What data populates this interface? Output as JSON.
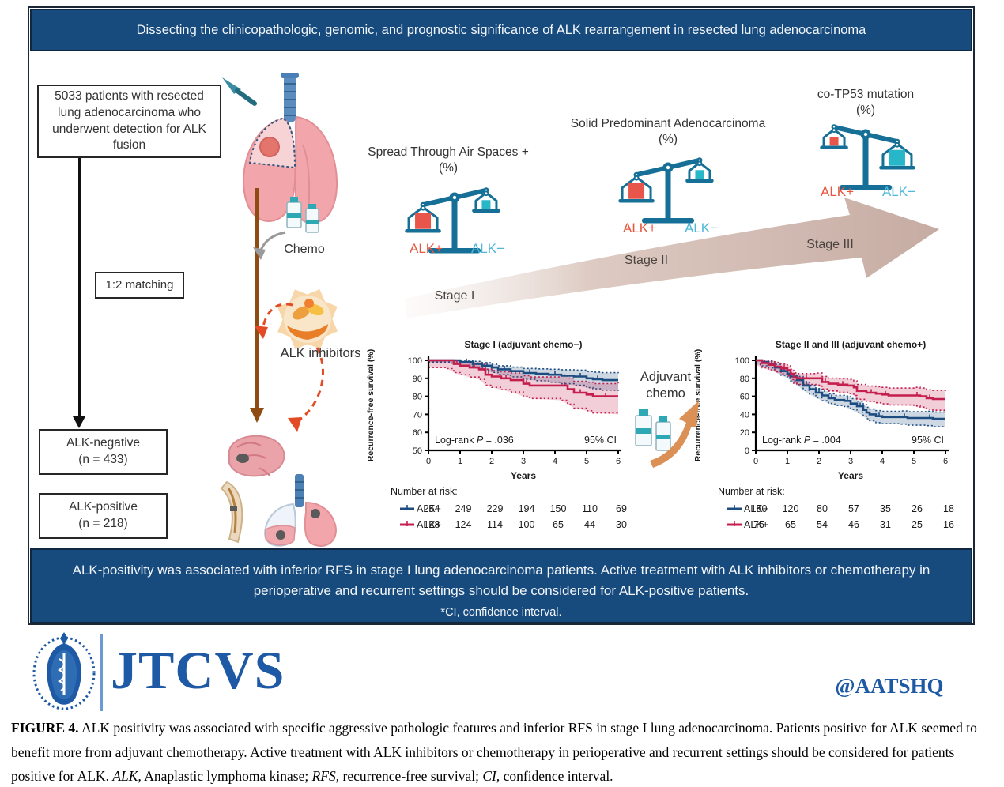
{
  "header": {
    "title": "Dissecting the clinicopathologic, genomic, and prognostic significance of ALK rearrangement in resected lung adenocarcinoma"
  },
  "flowchart": {
    "cohort_box": "5033 patients with resected lung adenocarcinoma who underwent detection for ALK fusion",
    "matching_box": "1:2 matching",
    "alk_negative": {
      "line1": "ALK-negative",
      "line2": "(n = 433)"
    },
    "alk_positive": {
      "line1": "ALK-positive",
      "line2": "(n = 218)"
    }
  },
  "treatments": {
    "chemo_label": "Chemo",
    "alk_inhibitors_label": "ALK inhibitors",
    "adjuvant_chemo_label": "Adjuvant chemo"
  },
  "scales": [
    {
      "title": "Spread Through Air Spaces +",
      "unit": "(%)",
      "left_label": "ALK+",
      "right_label": "ALK−",
      "lower_side": "left"
    },
    {
      "title": "Solid Predominant Adenocarcinoma",
      "unit": "(%)",
      "left_label": "ALK+",
      "right_label": "ALK−",
      "lower_side": "left"
    },
    {
      "title": "co-TP53 mutation",
      "unit": "(%)",
      "left_label": "ALK+",
      "right_label": "ALK−",
      "lower_side": "right"
    }
  ],
  "stages": [
    "Stage I",
    "Stage II",
    "Stage III"
  ],
  "conclusion": {
    "main": "ALK-positivity was associated with inferior RFS in stage I lung adenocarcinoma patients. Active treatment with ALK inhibitors or chemotherapy in perioperative and recurrent settings should be considered for ALK-positive patients.",
    "footnote": "*CI, confidence interval."
  },
  "branding": {
    "journal": "JTCVS",
    "handle": "@AATSHQ"
  },
  "caption_parts": [
    {
      "text": "FIGURE 4.",
      "bold": true
    },
    {
      "text": "  ALK positivity was associated with specific aggressive pathologic features and inferior RFS in stage I lung adenocarcinoma. Patients positive for ALK seemed to benefit more from adjuvant chemotherapy. Active treatment with ALK inhibitors or chemotherapy in perioperative and recurrent settings should be considered for patients positive for ALK. "
    },
    {
      "text": "ALK",
      "italic": true
    },
    {
      "text": ", Anaplastic lymphoma kinase; "
    },
    {
      "text": "RFS",
      "italic": true
    },
    {
      "text": ", recurrence-free survival; "
    },
    {
      "text": "CI",
      "italic": true
    },
    {
      "text": ", confidence interval."
    }
  ],
  "colors": {
    "banner_bg": "#174A7D",
    "scale_structure": "#156F96",
    "alk_pos_label": "#E8563F",
    "alk_neg_label": "#4FB7DA",
    "red_square": "#E8554A",
    "teal_square": "#28B6C9",
    "km_blue": "#1D4D80",
    "km_red": "#C41E4E",
    "stage_arrow": "#CDB2A9",
    "journal_blue": "#1E59A5"
  },
  "chart_data": [
    {
      "type": "line",
      "subtype": "kaplan_meier_step",
      "title": "Stage I (adjuvant chemo−)",
      "xlabel": "Years",
      "ylabel": "Recurrence-free survival (%)",
      "xlim": [
        0,
        6
      ],
      "ylim": [
        50,
        100
      ],
      "xticks": [
        0,
        1,
        2,
        3,
        4,
        5,
        6
      ],
      "yticks": [
        50,
        60,
        70,
        80,
        90,
        100
      ],
      "legend_position": "none",
      "grid": false,
      "logrank": {
        "prefix": "Log-rank ",
        "italic": "P",
        "suffix": " = .036"
      },
      "ci_label": "95% CI",
      "series": [
        {
          "name": "ALK−",
          "color": "#1D4D80",
          "points": [
            [
              0,
              100
            ],
            [
              0.7,
              100
            ],
            [
              1.0,
              99
            ],
            [
              1.4,
              98
            ],
            [
              1.7,
              97
            ],
            [
              2.0,
              96
            ],
            [
              2.2,
              95
            ],
            [
              2.6,
              94
            ],
            [
              3.0,
              93
            ],
            [
              3.4,
              92.5
            ],
            [
              3.8,
              92
            ],
            [
              4.2,
              91.5
            ],
            [
              4.6,
              91
            ],
            [
              5.0,
              90
            ],
            [
              5.2,
              89.5
            ],
            [
              5.5,
              89
            ],
            [
              6,
              89
            ]
          ],
          "ci_upper": [
            0.5,
            4.5
          ],
          "ci_lower": [
            1,
            6
          ]
        },
        {
          "name": "ALK+",
          "color": "#C41E4E",
          "points": [
            [
              0,
              100
            ],
            [
              0.6,
              100
            ],
            [
              0.8,
              98
            ],
            [
              1.0,
              97
            ],
            [
              1.3,
              96
            ],
            [
              1.6,
              95
            ],
            [
              1.8,
              92
            ],
            [
              2.0,
              91
            ],
            [
              2.3,
              90
            ],
            [
              2.6,
              89
            ],
            [
              3.0,
              87
            ],
            [
              3.2,
              86
            ],
            [
              4.2,
              86
            ],
            [
              4.4,
              84
            ],
            [
              4.6,
              82
            ],
            [
              5.0,
              81
            ],
            [
              5.2,
              80
            ],
            [
              6,
              80
            ]
          ],
          "ci_upper": [
            1,
            8
          ],
          "ci_lower": [
            4,
            10
          ]
        }
      ],
      "number_at_risk": {
        "label": "Number at risk:",
        "rows": [
          {
            "name": "ALK−",
            "color": "#1D4D80",
            "values": [
              254,
              249,
              229,
              194,
              150,
              110,
              69
            ]
          },
          {
            "name": "ALK+",
            "color": "#C41E4E",
            "values": [
              128,
              124,
              114,
              100,
              65,
              44,
              30
            ]
          }
        ]
      }
    },
    {
      "type": "line",
      "subtype": "kaplan_meier_step",
      "title": "Stage II and III (adjuvant chemo+)",
      "xlabel": "Years",
      "ylabel": "Recurrence-free survival (%)",
      "xlim": [
        0,
        6
      ],
      "ylim": [
        0,
        100
      ],
      "xticks": [
        0,
        1,
        2,
        3,
        4,
        5,
        6
      ],
      "yticks": [
        0,
        20,
        40,
        60,
        80,
        100
      ],
      "legend_position": "none",
      "grid": false,
      "logrank": {
        "prefix": "Log-rank ",
        "italic": "P",
        "suffix": " = .004"
      },
      "ci_label": "95% CI",
      "series": [
        {
          "name": "ALK−",
          "color": "#1D4D80",
          "points": [
            [
              0,
              100
            ],
            [
              0.2,
              98
            ],
            [
              0.4,
              96
            ],
            [
              0.6,
              92
            ],
            [
              0.8,
              88
            ],
            [
              1.0,
              85
            ],
            [
              1.1,
              82
            ],
            [
              1.3,
              78
            ],
            [
              1.5,
              72
            ],
            [
              1.7,
              68
            ],
            [
              1.9,
              64
            ],
            [
              2.1,
              61
            ],
            [
              2.3,
              58
            ],
            [
              2.5,
              56
            ],
            [
              2.8,
              55
            ],
            [
              3.0,
              52
            ],
            [
              3.2,
              49
            ],
            [
              3.4,
              45
            ],
            [
              3.5,
              42
            ],
            [
              3.6,
              40
            ],
            [
              3.8,
              38
            ],
            [
              4.0,
              37
            ],
            [
              4.6,
              37
            ],
            [
              4.8,
              36
            ],
            [
              5.4,
              36
            ],
            [
              5.6,
              35
            ],
            [
              6,
              35
            ]
          ],
          "ci_upper": [
            3,
            8
          ],
          "ci_lower": [
            4,
            9
          ]
        },
        {
          "name": "ALK+",
          "color": "#C41E4E",
          "points": [
            [
              0,
              100
            ],
            [
              0.2,
              97
            ],
            [
              0.4,
              95
            ],
            [
              0.6,
              93
            ],
            [
              0.8,
              91
            ],
            [
              1.0,
              89
            ],
            [
              1.1,
              85
            ],
            [
              1.2,
              81
            ],
            [
              1.3,
              80
            ],
            [
              1.9,
              80
            ],
            [
              2.1,
              76
            ],
            [
              2.3,
              74
            ],
            [
              2.6,
              73
            ],
            [
              2.9,
              72
            ],
            [
              3.1,
              70
            ],
            [
              3.2,
              66
            ],
            [
              3.5,
              64
            ],
            [
              3.8,
              63
            ],
            [
              4.0,
              62
            ],
            [
              4.2,
              61
            ],
            [
              5.0,
              61
            ],
            [
              5.2,
              60
            ],
            [
              5.4,
              58
            ],
            [
              5.6,
              57
            ],
            [
              6,
              57
            ]
          ],
          "ci_upper": [
            4,
            10
          ],
          "ci_lower": [
            5,
            13
          ]
        }
      ],
      "number_at_risk": {
        "label": "Number at risk:",
        "rows": [
          {
            "name": "ALK−",
            "color": "#1D4D80",
            "values": [
              150,
              120,
              80,
              57,
              35,
              26,
              18
            ]
          },
          {
            "name": "ALK+",
            "color": "#C41E4E",
            "values": [
              75,
              65,
              54,
              46,
              31,
              25,
              16
            ]
          }
        ]
      }
    }
  ]
}
